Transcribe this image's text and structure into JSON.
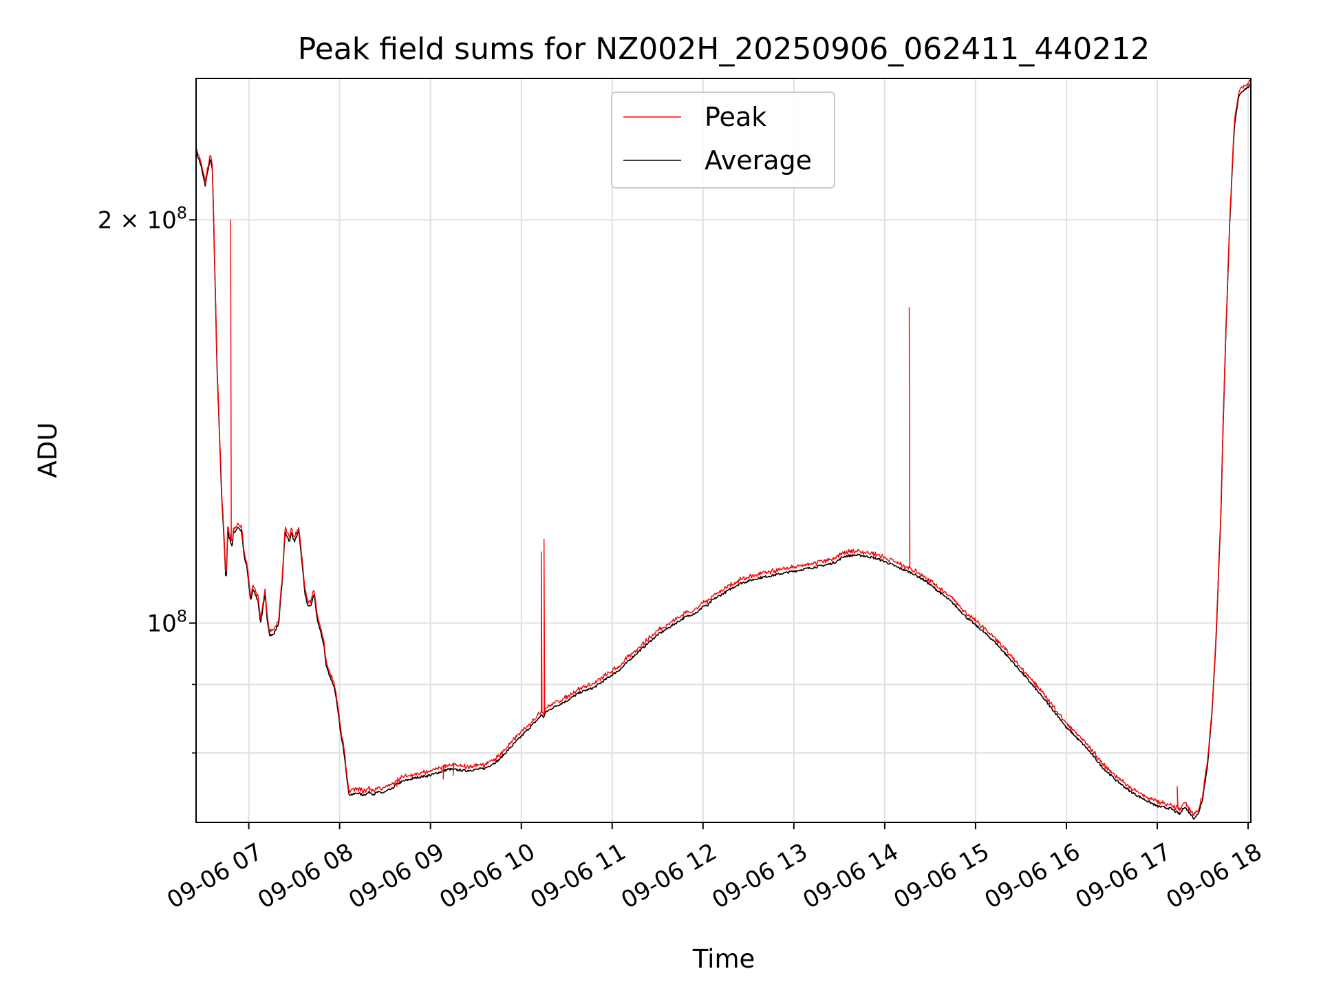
{
  "chart_data": {
    "type": "line",
    "title": "Peak field sums for NZ002H_20250906_062411_440212",
    "xlabel": "Time",
    "ylabel": "ADU",
    "y_scale": "log",
    "xlim_hours": [
      6.42,
      18.03
    ],
    "ylim": [
      71000000,
      255000000
    ],
    "x_tick_values_hours": [
      7,
      8,
      9,
      10,
      11,
      12,
      13,
      14,
      15,
      16,
      17,
      18
    ],
    "x_tick_labels": [
      "09-06 07",
      "09-06 08",
      "09-06 09",
      "09-06 10",
      "09-06 11",
      "09-06 12",
      "09-06 13",
      "09-06 14",
      "09-06 15",
      "09-06 16",
      "09-06 17",
      "09-06 18"
    ],
    "y_major_ticks": [
      {
        "value": 200000000,
        "label_base": "2 × 10",
        "label_exp": "8"
      },
      {
        "value": 100000000,
        "label_base": "10",
        "label_exp": "8"
      }
    ],
    "y_minor_ticks": [
      80000000,
      90000000
    ],
    "grid": true,
    "legend": {
      "position": "top-center",
      "entries": [
        {
          "name": "Peak",
          "color": "#ff0000"
        },
        {
          "name": "Average",
          "color": "#000000"
        }
      ]
    },
    "series": [
      {
        "name": "Average",
        "color": "#000000",
        "x": [
          6.42,
          6.47,
          6.52,
          6.55,
          6.58,
          6.6,
          6.62,
          6.65,
          6.7,
          6.72,
          6.75,
          6.77,
          6.78,
          6.8,
          6.82,
          6.83,
          6.85,
          6.88,
          6.92,
          6.95,
          6.98,
          7.02,
          7.05,
          7.1,
          7.13,
          7.18,
          7.2,
          7.23,
          7.27,
          7.3,
          7.33,
          7.37,
          7.4,
          7.45,
          7.47,
          7.5,
          7.55,
          7.58,
          7.62,
          7.65,
          7.68,
          7.72,
          7.75,
          7.78,
          7.8,
          7.83,
          7.85,
          7.9,
          7.93,
          7.95,
          7.98,
          8.02,
          8.05,
          8.1,
          8.15,
          8.2,
          8.25,
          8.3,
          8.33,
          8.38,
          8.42,
          8.47,
          8.5,
          8.53,
          8.58,
          8.62,
          8.7,
          8.85,
          9.0,
          9.2,
          9.4,
          9.6,
          9.75,
          9.9,
          10.05,
          10.2,
          10.22,
          10.24,
          10.27,
          10.35,
          10.5,
          10.65,
          10.8,
          10.95,
          11.1,
          11.2,
          11.35,
          11.5,
          11.65,
          11.8,
          11.95,
          12.0,
          12.05,
          12.1,
          12.15,
          12.2,
          12.3,
          12.4,
          12.5,
          12.6,
          12.75,
          12.9,
          13.05,
          13.2,
          13.35,
          13.45,
          13.5,
          13.53,
          13.57,
          13.62,
          13.68,
          13.75,
          13.85,
          13.95,
          14.05,
          14.15,
          14.3,
          14.45,
          14.6,
          14.75,
          14.9,
          15.05,
          15.2,
          15.35,
          15.5,
          15.65,
          15.8,
          15.95,
          16.0,
          16.05,
          16.12,
          16.2,
          16.3,
          16.4,
          16.55,
          16.7,
          16.85,
          17.0,
          17.15,
          17.25,
          17.3,
          17.33,
          17.37,
          17.4,
          17.45,
          17.5,
          17.55,
          17.6,
          17.65,
          17.7,
          17.75,
          17.8,
          17.85,
          17.9,
          17.95,
          18.03
        ],
        "values": [
          225000000,
          220000000,
          212000000,
          218000000,
          222000000,
          218000000,
          190000000,
          155000000,
          125000000,
          118000000,
          107000000,
          118000000,
          116000000,
          115000000,
          114000000,
          117000000,
          117000000,
          118000000,
          117000000,
          112000000,
          110000000,
          104000000,
          106000000,
          104000000,
          100000000,
          105000000,
          101000000,
          98000000,
          98000000,
          99000000,
          100000000,
          108000000,
          117000000,
          115000000,
          117000000,
          115000000,
          117000000,
          112000000,
          105000000,
          103000000,
          103000000,
          105000000,
          101000000,
          99000000,
          98000000,
          96000000,
          93000000,
          91000000,
          90000000,
          89000000,
          86000000,
          82000000,
          80000000,
          74500000,
          74500000,
          74700000,
          74400000,
          74600000,
          74800000,
          74500000,
          74800000,
          74700000,
          74800000,
          75000000,
          75200000,
          75800000,
          76200000,
          76700000,
          77000000,
          77800000,
          77600000,
          77900000,
          79000000,
          81000000,
          83000000,
          85000000,
          85500000,
          85000000,
          85800000,
          86500000,
          87500000,
          88800000,
          89500000,
          91000000,
          92500000,
          94000000,
          96000000,
          98000000,
          99500000,
          101000000,
          102000000,
          103000000,
          103000000,
          104000000,
          104500000,
          105000000,
          106000000,
          107000000,
          107500000,
          108000000,
          108500000,
          109000000,
          109500000,
          110000000,
          110500000,
          111000000,
          111500000,
          112000000,
          112200000,
          112300000,
          112400000,
          112300000,
          112000000,
          111500000,
          110800000,
          110000000,
          109000000,
          107500000,
          105500000,
          103500000,
          101000000,
          99000000,
          97000000,
          94500000,
          92000000,
          89500000,
          87000000,
          84500000,
          83500000,
          83000000,
          82000000,
          81000000,
          79500000,
          78000000,
          76300000,
          74900000,
          73900000,
          73000000,
          72700000,
          72000000,
          73000000,
          72500000,
          72000000,
          71500000,
          72000000,
          74000000,
          78000000,
          85000000,
          98000000,
          120000000,
          160000000,
          200000000,
          235000000,
          248000000,
          250000000,
          252000000
        ]
      },
      {
        "name": "Peak",
        "color": "#ff0000",
        "spikes": [
          {
            "x": 6.8,
            "value": 200000000
          },
          {
            "x": 8.63,
            "value": 75500000
          },
          {
            "x": 9.14,
            "value": 76500000
          },
          {
            "x": 9.25,
            "value": 77000000
          },
          {
            "x": 10.22,
            "value": 113000000
          },
          {
            "x": 10.25,
            "value": 115500000
          },
          {
            "x": 14.27,
            "value": 172000000
          },
          {
            "x": 17.22,
            "value": 75500000
          }
        ]
      }
    ]
  }
}
